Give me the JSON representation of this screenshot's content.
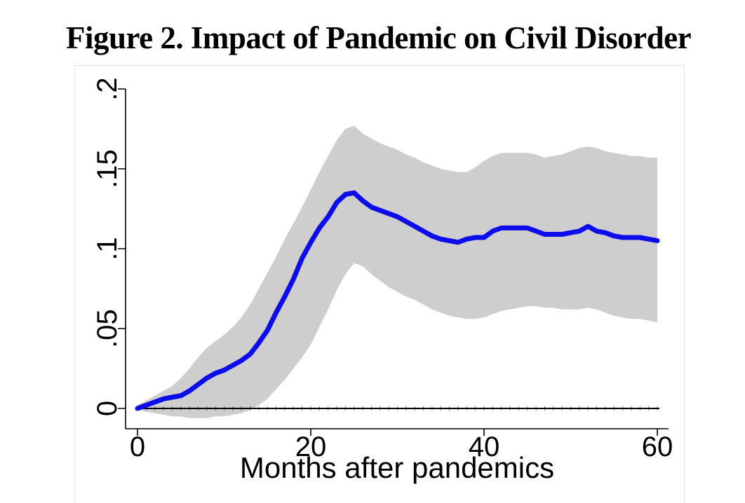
{
  "figure": {
    "title": "Figure 2. Impact of Pandemic on Civil Disorder"
  },
  "colors": {
    "line": "#0d0dec",
    "band": "#cecece",
    "axis": "#000000",
    "zero_line": "#000000",
    "region_border": "#e4e4e4",
    "background": "#ffffff"
  },
  "chart_data": {
    "type": "line",
    "title": "Figure 2. Impact of Pandemic on Civil Disorder",
    "xlabel": "Months after pandemics",
    "ylabel": "",
    "xlim": [
      0,
      60
    ],
    "ylim": [
      0,
      0.2
    ],
    "grid": false,
    "legend": "none",
    "zero_reference_line": true,
    "x_ticks": [
      "0",
      "20",
      "40",
      "60"
    ],
    "x_tick_values": [
      0,
      20,
      40,
      60
    ],
    "y_ticks": [
      "0",
      ".05",
      ".1",
      ".15",
      ".2"
    ],
    "y_tick_values": [
      0,
      0.05,
      0.1,
      0.15,
      0.2
    ],
    "x": [
      0,
      1,
      2,
      3,
      4,
      5,
      6,
      7,
      8,
      9,
      10,
      11,
      12,
      13,
      14,
      15,
      16,
      17,
      18,
      19,
      20,
      21,
      22,
      23,
      24,
      25,
      26,
      27,
      28,
      29,
      30,
      31,
      32,
      33,
      34,
      35,
      36,
      37,
      38,
      39,
      40,
      41,
      42,
      43,
      44,
      45,
      46,
      47,
      48,
      49,
      50,
      51,
      52,
      53,
      54,
      55,
      56,
      57,
      58,
      59,
      60
    ],
    "band_color": "#cecece",
    "series": [
      {
        "name": "response",
        "role": "line",
        "color": "#0d0dec",
        "values": [
          0.0,
          0.002,
          0.004,
          0.006,
          0.007,
          0.008,
          0.011,
          0.015,
          0.019,
          0.022,
          0.024,
          0.027,
          0.03,
          0.034,
          0.041,
          0.049,
          0.06,
          0.07,
          0.081,
          0.094,
          0.104,
          0.113,
          0.12,
          0.129,
          0.134,
          0.135,
          0.13,
          0.126,
          0.124,
          0.122,
          0.12,
          0.117,
          0.114,
          0.111,
          0.108,
          0.106,
          0.105,
          0.104,
          0.106,
          0.107,
          0.107,
          0.111,
          0.113,
          0.113,
          0.113,
          0.113,
          0.111,
          0.109,
          0.109,
          0.109,
          0.11,
          0.111,
          0.114,
          0.111,
          0.11,
          0.108,
          0.107,
          0.107,
          0.107,
          0.106,
          0.105
        ]
      },
      {
        "name": "ci_upper",
        "role": "band-upper",
        "color": "#cecece",
        "values": [
          0.002,
          0.005,
          0.008,
          0.011,
          0.014,
          0.019,
          0.025,
          0.032,
          0.038,
          0.042,
          0.046,
          0.051,
          0.057,
          0.065,
          0.075,
          0.085,
          0.095,
          0.106,
          0.116,
          0.126,
          0.137,
          0.148,
          0.158,
          0.168,
          0.175,
          0.177,
          0.172,
          0.169,
          0.166,
          0.164,
          0.162,
          0.159,
          0.157,
          0.154,
          0.152,
          0.15,
          0.149,
          0.148,
          0.148,
          0.151,
          0.155,
          0.158,
          0.16,
          0.16,
          0.16,
          0.16,
          0.159,
          0.157,
          0.158,
          0.159,
          0.161,
          0.163,
          0.164,
          0.163,
          0.161,
          0.16,
          0.159,
          0.158,
          0.158,
          0.157,
          0.157
        ]
      },
      {
        "name": "ci_lower",
        "role": "band-lower",
        "color": "#cecece",
        "values": [
          -0.001,
          -0.002,
          -0.003,
          -0.004,
          -0.005,
          -0.005,
          -0.006,
          -0.006,
          -0.006,
          -0.005,
          -0.005,
          -0.004,
          -0.003,
          -0.001,
          0.002,
          0.006,
          0.012,
          0.018,
          0.025,
          0.032,
          0.04,
          0.051,
          0.062,
          0.074,
          0.084,
          0.091,
          0.089,
          0.084,
          0.08,
          0.076,
          0.073,
          0.07,
          0.068,
          0.065,
          0.062,
          0.06,
          0.058,
          0.057,
          0.056,
          0.056,
          0.057,
          0.059,
          0.061,
          0.062,
          0.063,
          0.064,
          0.064,
          0.063,
          0.063,
          0.062,
          0.062,
          0.062,
          0.063,
          0.062,
          0.06,
          0.058,
          0.057,
          0.056,
          0.056,
          0.055,
          0.054
        ]
      }
    ]
  }
}
